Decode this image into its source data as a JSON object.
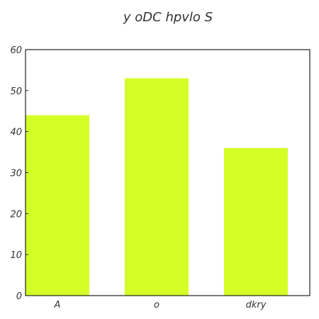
{
  "chart_data": {
    "type": "bar",
    "title": "y oDC hpvlo S",
    "categories": [
      "A",
      "o",
      "dkry"
    ],
    "values": [
      44,
      53,
      36
    ],
    "ylim": [
      0,
      60
    ],
    "yticks": [
      0,
      10,
      20,
      30,
      40,
      50,
      60
    ],
    "xlabel": "",
    "ylabel": "",
    "grid": false,
    "bar_color": "#d4ff26"
  }
}
